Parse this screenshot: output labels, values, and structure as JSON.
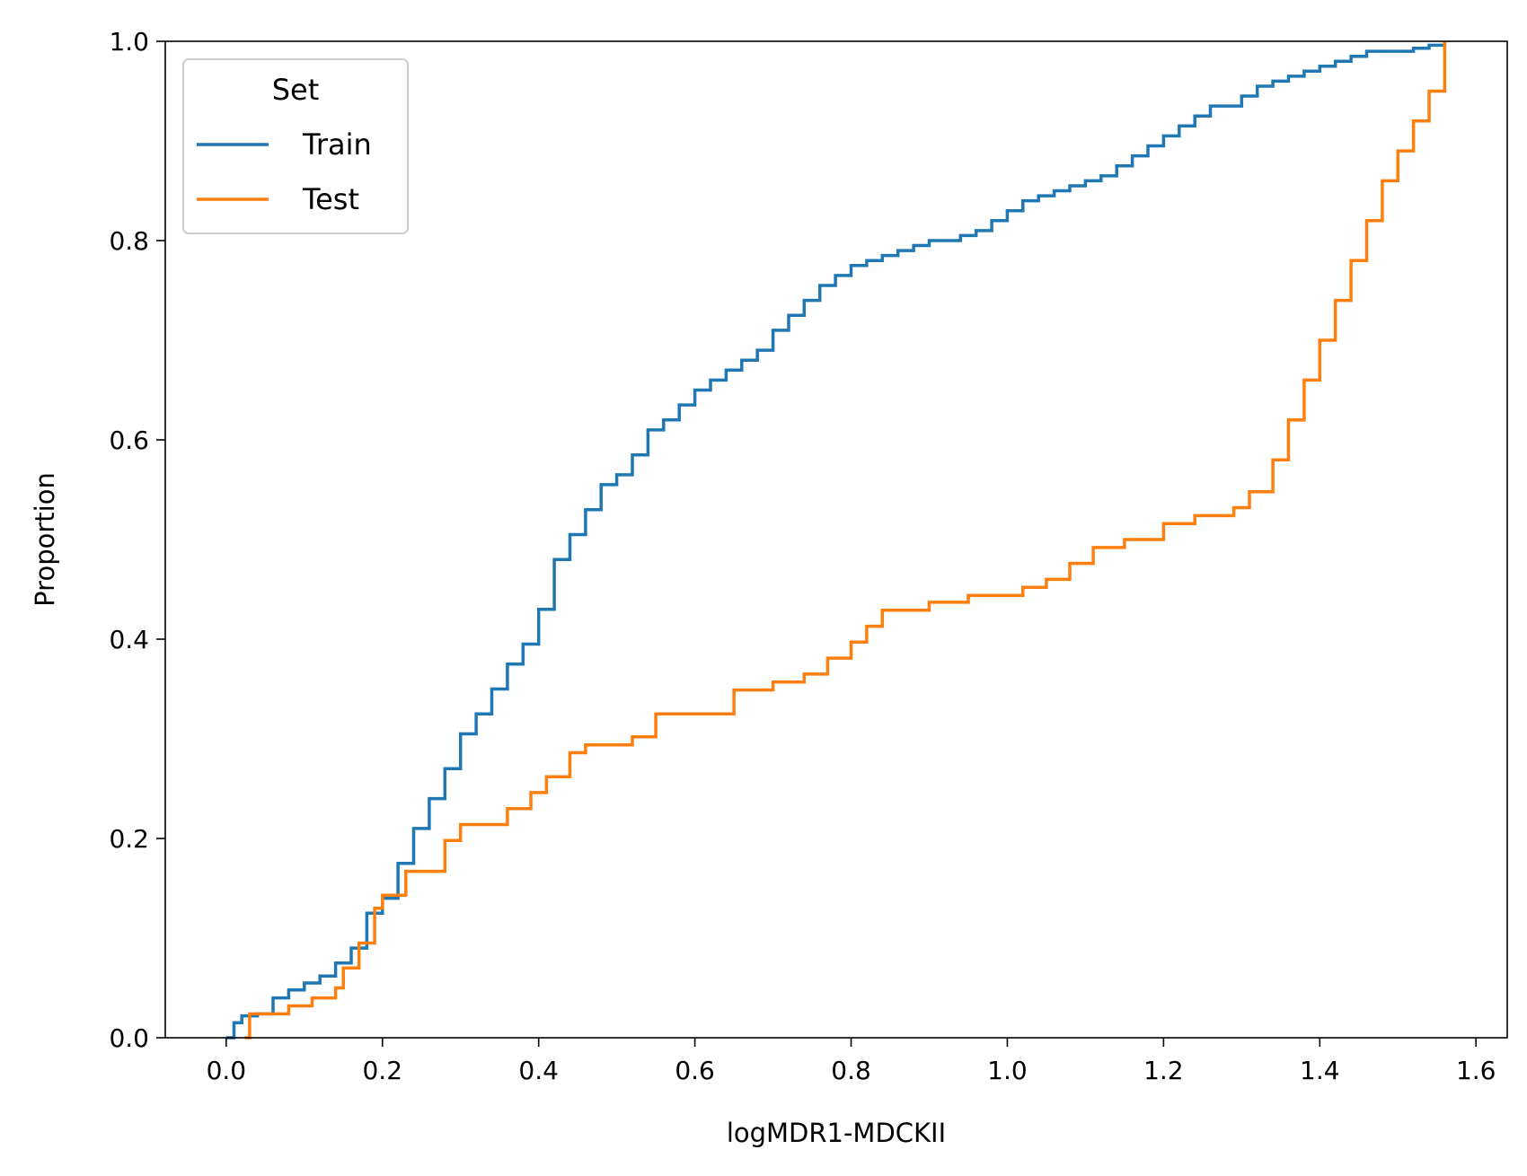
{
  "chart_data": {
    "type": "line",
    "title": "",
    "xlabel": "logMDR1-MDCKII",
    "ylabel": "Proportion",
    "xlim": [
      -0.078,
      1.64
    ],
    "ylim": [
      0,
      1
    ],
    "xticks": [
      "0.0",
      "0.2",
      "0.4",
      "0.6",
      "0.8",
      "1.0",
      "1.2",
      "1.4",
      "1.6"
    ],
    "yticks": [
      "0.0",
      "0.2",
      "0.4",
      "0.6",
      "0.8",
      "1.0"
    ],
    "grid": false,
    "legend": {
      "title": "Set",
      "placement": "top-left"
    },
    "series": [
      {
        "name": "Train",
        "color": "#1f77b4",
        "x": [
          0.0,
          0.01,
          0.02,
          0.04,
          0.06,
          0.08,
          0.1,
          0.12,
          0.14,
          0.16,
          0.18,
          0.2,
          0.22,
          0.24,
          0.26,
          0.28,
          0.3,
          0.32,
          0.34,
          0.36,
          0.38,
          0.4,
          0.42,
          0.44,
          0.46,
          0.48,
          0.5,
          0.52,
          0.54,
          0.56,
          0.58,
          0.6,
          0.62,
          0.64,
          0.66,
          0.68,
          0.7,
          0.72,
          0.74,
          0.76,
          0.78,
          0.8,
          0.82,
          0.84,
          0.86,
          0.88,
          0.9,
          0.92,
          0.94,
          0.96,
          0.98,
          1.0,
          1.02,
          1.04,
          1.06,
          1.08,
          1.1,
          1.12,
          1.14,
          1.16,
          1.18,
          1.2,
          1.22,
          1.24,
          1.26,
          1.28,
          1.3,
          1.32,
          1.34,
          1.36,
          1.38,
          1.4,
          1.42,
          1.44,
          1.46,
          1.48,
          1.5,
          1.52,
          1.54,
          1.56
        ],
        "y": [
          0.0,
          0.015,
          0.022,
          0.024,
          0.04,
          0.048,
          0.055,
          0.062,
          0.075,
          0.09,
          0.125,
          0.14,
          0.175,
          0.21,
          0.24,
          0.27,
          0.305,
          0.325,
          0.35,
          0.375,
          0.395,
          0.43,
          0.48,
          0.505,
          0.53,
          0.555,
          0.565,
          0.585,
          0.61,
          0.62,
          0.635,
          0.65,
          0.66,
          0.67,
          0.68,
          0.69,
          0.71,
          0.725,
          0.74,
          0.755,
          0.765,
          0.775,
          0.78,
          0.785,
          0.79,
          0.795,
          0.8,
          0.8,
          0.805,
          0.81,
          0.82,
          0.83,
          0.84,
          0.845,
          0.85,
          0.855,
          0.86,
          0.865,
          0.875,
          0.885,
          0.895,
          0.905,
          0.915,
          0.925,
          0.935,
          0.935,
          0.945,
          0.955,
          0.96,
          0.965,
          0.97,
          0.975,
          0.98,
          0.985,
          0.99,
          0.99,
          0.99,
          0.993,
          0.996,
          1.0
        ]
      },
      {
        "name": "Test",
        "color": "#ff7f0e",
        "x": [
          0.024,
          0.03,
          0.08,
          0.11,
          0.14,
          0.15,
          0.17,
          0.19,
          0.2,
          0.23,
          0.28,
          0.3,
          0.36,
          0.39,
          0.41,
          0.44,
          0.46,
          0.52,
          0.55,
          0.65,
          0.7,
          0.74,
          0.77,
          0.8,
          0.82,
          0.84,
          0.9,
          0.95,
          1.02,
          1.05,
          1.08,
          1.11,
          1.15,
          1.2,
          1.24,
          1.29,
          1.31,
          1.34,
          1.36,
          1.38,
          1.4,
          1.42,
          1.44,
          1.46,
          1.48,
          1.5,
          1.52,
          1.54,
          1.56
        ],
        "y": [
          0.0,
          0.024,
          0.032,
          0.04,
          0.05,
          0.07,
          0.095,
          0.13,
          0.143,
          0.167,
          0.198,
          0.214,
          0.23,
          0.246,
          0.262,
          0.286,
          0.294,
          0.302,
          0.325,
          0.349,
          0.357,
          0.365,
          0.381,
          0.397,
          0.413,
          0.429,
          0.437,
          0.444,
          0.452,
          0.46,
          0.476,
          0.492,
          0.5,
          0.516,
          0.524,
          0.532,
          0.548,
          0.58,
          0.62,
          0.66,
          0.7,
          0.74,
          0.78,
          0.82,
          0.86,
          0.89,
          0.92,
          0.95,
          1.0
        ]
      }
    ]
  }
}
